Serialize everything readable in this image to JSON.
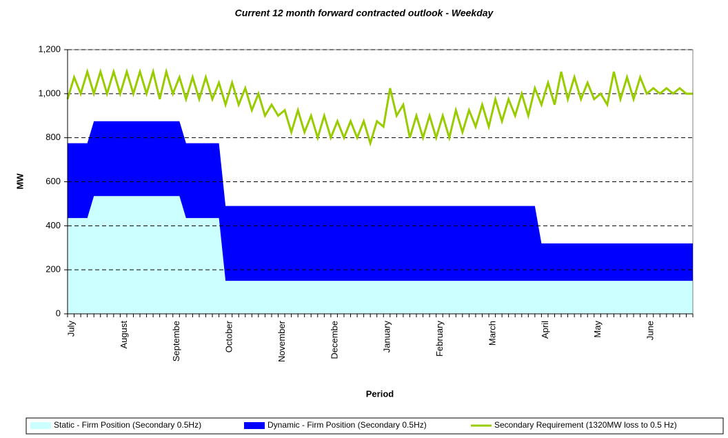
{
  "chart_data": {
    "type": "area",
    "title": "Current 12 month forward contracted outlook - Weekday",
    "x_label": "Period",
    "y_label": "MW",
    "categories": [
      "July",
      null,
      null,
      null,
      null,
      null,
      null,
      null,
      "August",
      null,
      null,
      null,
      null,
      null,
      null,
      null,
      "Septembe",
      null,
      null,
      null,
      null,
      null,
      null,
      null,
      "October",
      null,
      null,
      null,
      null,
      null,
      null,
      null,
      "November",
      null,
      null,
      null,
      null,
      null,
      null,
      null,
      "Decembe",
      null,
      null,
      null,
      null,
      null,
      null,
      null,
      "January",
      null,
      null,
      null,
      null,
      null,
      null,
      null,
      "February",
      null,
      null,
      null,
      null,
      null,
      null,
      null,
      "March",
      null,
      null,
      null,
      null,
      null,
      null,
      null,
      "April",
      null,
      null,
      null,
      null,
      null,
      null,
      null,
      "May",
      null,
      null,
      null,
      null,
      null,
      null,
      null,
      "June",
      null,
      null,
      null,
      null,
      null,
      null,
      null
    ],
    "series": [
      {
        "name": "Static - Firm Position (Secondary 0.5Hz)",
        "type": "area",
        "color": "#ccffff",
        "values": [
          435,
          435,
          435,
          435,
          535,
          535,
          535,
          535,
          535,
          535,
          535,
          535,
          535,
          535,
          535,
          535,
          535,
          535,
          435,
          435,
          435,
          435,
          435,
          435,
          150,
          150,
          150,
          150,
          150,
          150,
          150,
          150,
          150,
          150,
          150,
          150,
          150,
          150,
          150,
          150,
          150,
          150,
          150,
          150,
          150,
          150,
          150,
          150,
          150,
          150,
          150,
          150,
          150,
          150,
          150,
          150,
          150,
          150,
          150,
          150,
          150,
          150,
          150,
          150,
          150,
          150,
          150,
          150,
          150,
          150,
          150,
          150,
          150,
          150,
          150,
          150,
          150,
          150,
          150,
          150,
          150,
          150,
          150,
          150,
          150,
          150,
          150,
          150,
          150,
          150,
          150,
          150,
          150,
          150,
          150,
          150
        ]
      },
      {
        "name": "Dynamic - Firm Position (Secondary 0.5Hz)",
        "type": "area",
        "color": "#0000ff",
        "values": [
          340,
          340,
          340,
          340,
          340,
          340,
          340,
          340,
          340,
          340,
          340,
          340,
          340,
          340,
          340,
          340,
          340,
          340,
          340,
          340,
          340,
          340,
          340,
          340,
          340,
          340,
          340,
          340,
          340,
          340,
          340,
          340,
          340,
          340,
          340,
          340,
          340,
          340,
          340,
          340,
          340,
          340,
          340,
          340,
          340,
          340,
          340,
          340,
          340,
          340,
          340,
          340,
          340,
          340,
          340,
          340,
          340,
          340,
          340,
          340,
          340,
          340,
          340,
          340,
          340,
          340,
          340,
          340,
          340,
          340,
          340,
          340,
          170,
          170,
          170,
          170,
          170,
          170,
          170,
          170,
          170,
          170,
          170,
          170,
          170,
          170,
          170,
          170,
          170,
          170,
          170,
          170,
          170,
          170,
          170,
          170
        ]
      },
      {
        "name": "Secondary Requirement (1320MW loss to 0.5 Hz)",
        "type": "line",
        "color": "#99cc00",
        "values": [
          975,
          1075,
          1000,
          1100,
          1000,
          1100,
          1000,
          1100,
          1000,
          1100,
          1000,
          1100,
          1000,
          1100,
          975,
          1100,
          1000,
          1075,
          975,
          1075,
          975,
          1075,
          975,
          1050,
          950,
          1050,
          950,
          1025,
          925,
          1000,
          900,
          950,
          900,
          925,
          825,
          925,
          825,
          900,
          800,
          900,
          800,
          875,
          800,
          875,
          800,
          875,
          775,
          875,
          850,
          1025,
          900,
          950,
          800,
          900,
          800,
          900,
          800,
          900,
          800,
          925,
          825,
          925,
          850,
          950,
          850,
          975,
          875,
          975,
          900,
          1000,
          900,
          1025,
          950,
          1050,
          950,
          1100,
          975,
          1075,
          975,
          1050,
          975,
          1000,
          950,
          1100,
          975,
          1075,
          975,
          1075,
          1000,
          1025,
          1000,
          1025,
          1000,
          1025,
          1000,
          1000
        ]
      }
    ],
    "ylim": [
      0,
      1200
    ],
    "yticks": [
      0,
      200,
      400,
      600,
      800,
      {
        "value": 1000,
        "label": "1,000"
      },
      {
        "value": 1200,
        "label": "1,200"
      }
    ],
    "grid": true,
    "legend": "bottom"
  }
}
